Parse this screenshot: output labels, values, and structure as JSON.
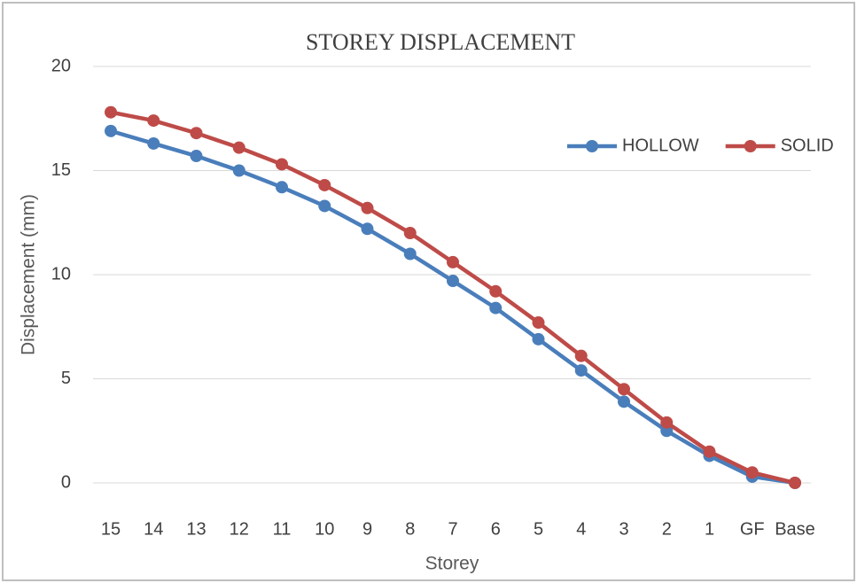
{
  "chart_data": {
    "type": "line",
    "title": "STOREY DISPLACEMENT",
    "x_label": "Storey",
    "y_label": "Displacement (mm)",
    "categories": [
      "15",
      "14",
      "13",
      "12",
      "11",
      "10",
      "9",
      "8",
      "7",
      "6",
      "5",
      "4",
      "3",
      "2",
      "1",
      "GF",
      "Base"
    ],
    "series": [
      {
        "name": "HOLLOW",
        "color": "#4a7ebb",
        "values": [
          16.9,
          16.3,
          15.7,
          15.0,
          14.2,
          13.3,
          12.2,
          11.0,
          9.7,
          8.4,
          6.9,
          5.4,
          3.9,
          2.5,
          1.3,
          0.3,
          0
        ]
      },
      {
        "name": "SOLID",
        "color": "#be4b48",
        "values": [
          17.8,
          17.4,
          16.8,
          16.1,
          15.3,
          14.3,
          13.2,
          12.0,
          10.6,
          9.2,
          7.7,
          6.1,
          4.5,
          2.9,
          1.5,
          0.5,
          0
        ]
      }
    ],
    "ylim": [
      0,
      20
    ],
    "yticks": [
      0,
      5,
      10,
      15,
      20
    ],
    "grid": true,
    "legend": "upper right"
  }
}
